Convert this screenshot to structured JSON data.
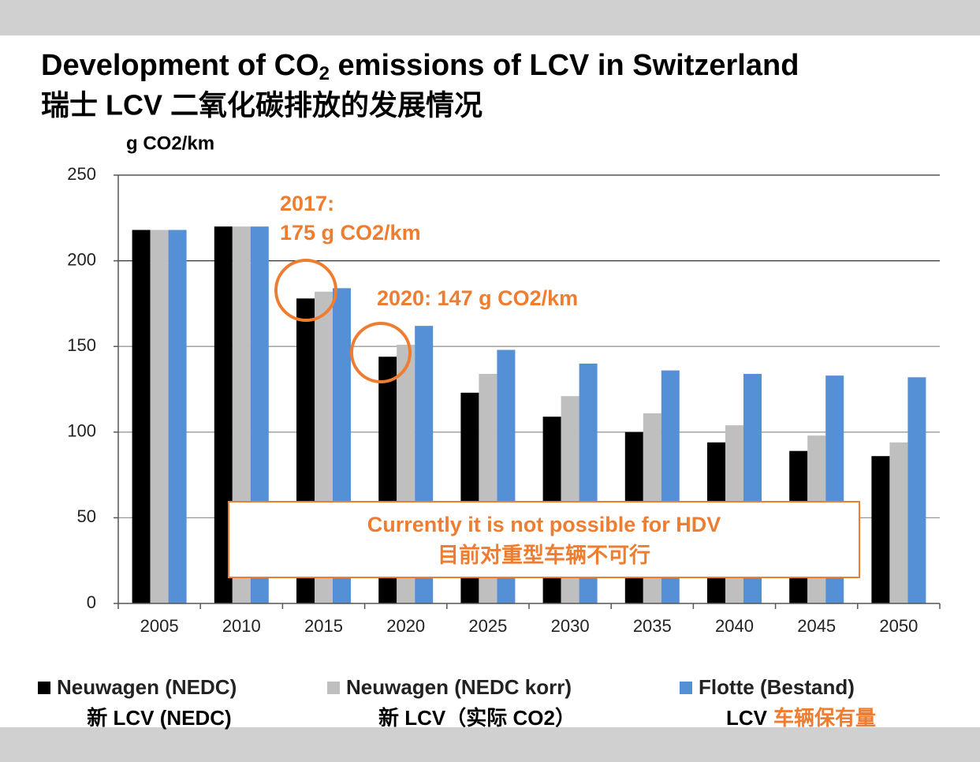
{
  "chart_data": {
    "type": "bar",
    "title": [
      "Development of CO",
      "2",
      " emissions of LCV in Switzerland"
    ],
    "subtitle": "瑞士 LCV 二氧化碳排放的发展情况",
    "y_label": "g CO2/km",
    "categories": [
      "2005",
      "2010",
      "2015",
      "2020",
      "2025",
      "2030",
      "2035",
      "2040",
      "2045",
      "2050"
    ],
    "series": [
      {
        "name": "Neuwagen (NEDC)",
        "color": "#000000",
        "values": [
          218,
          220,
          178,
          144,
          123,
          109,
          100,
          94,
          89,
          86
        ]
      },
      {
        "name": "Neuwagen (NEDC korr)",
        "color": "#bfbfbf",
        "values": [
          218,
          220,
          182,
          151,
          134,
          121,
          111,
          104,
          98,
          94
        ]
      },
      {
        "name": "Flotte (Bestand)",
        "color": "#5590d6",
        "values": [
          218,
          220,
          184,
          162,
          148,
          140,
          136,
          134,
          133,
          132
        ]
      }
    ],
    "legend_notes": [
      "新 LCV (NEDC)",
      "新 LCV（实际 CO2）",
      [
        "LCV",
        "车辆保有量"
      ]
    ],
    "annotations": [
      [
        "2017:",
        "175 g CO2/km"
      ],
      [
        "2020: 147 g CO2/km"
      ]
    ],
    "note_box": [
      "Currently it is not possible for HDV",
      "目前对重型车辆不可行"
    ],
    "ylim": [
      0,
      250
    ],
    "yticks": [
      0,
      50,
      100,
      150,
      200,
      250
    ],
    "grid": true
  }
}
